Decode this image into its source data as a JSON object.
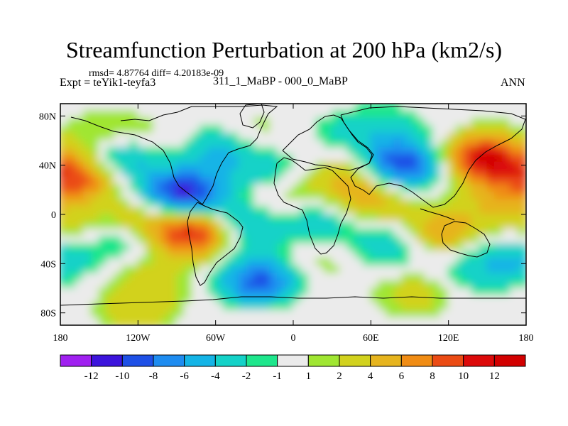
{
  "header": {
    "title": "Streamfunction Perturbation at 200 hPa (km2/s)",
    "stats": "rmsd= 4.87764 diff= 4.20183e-09",
    "experiment": "Expt = teYik1-teyfa3",
    "comparison": "311_1_MaBP - 000_0_MaBP",
    "season": "ANN"
  },
  "chart_data": {
    "type": "heatmap",
    "title": "Streamfunction Perturbation at 200 hPa (km2/s)",
    "xlabel": "",
    "ylabel": "",
    "x_range": [
      -180,
      180
    ],
    "y_range": [
      -90,
      90
    ],
    "x_ticks": [
      {
        "value": -180,
        "label": "180"
      },
      {
        "value": -120,
        "label": "120W"
      },
      {
        "value": -60,
        "label": "60W"
      },
      {
        "value": 0,
        "label": "0"
      },
      {
        "value": 60,
        "label": "60E"
      },
      {
        "value": 120,
        "label": "120E"
      },
      {
        "value": 180,
        "label": "180"
      }
    ],
    "y_ticks": [
      {
        "value": 80,
        "label": "80N"
      },
      {
        "value": 40,
        "label": "40N"
      },
      {
        "value": 0,
        "label": "0"
      },
      {
        "value": -40,
        "label": "40S"
      },
      {
        "value": -80,
        "label": "80S"
      }
    ],
    "colorbar": {
      "labels": [
        "-12",
        "-10",
        "-8",
        "-6",
        "-4",
        "-2",
        "-1",
        "1",
        "2",
        "4",
        "6",
        "8",
        "10",
        "12"
      ],
      "colors": [
        "#a020f0",
        "#3c14dc",
        "#1e50e6",
        "#1e8cf0",
        "#14b4e6",
        "#14d2c8",
        "#1ee68c",
        "#ebebeb",
        "#a0e632",
        "#d2d21e",
        "#e6b41e",
        "#f08c14",
        "#eb4b14",
        "#dc0a0a",
        "#d20000"
      ]
    },
    "anomalies": [
      {
        "lon": -165,
        "lat": 30,
        "value": 9
      },
      {
        "lon": -140,
        "lat": 65,
        "value": 3
      },
      {
        "lon": -165,
        "lat": -15,
        "value": 3
      },
      {
        "lon": -130,
        "lat": 45,
        "value": -6
      },
      {
        "lon": -135,
        "lat": -20,
        "value": -4
      },
      {
        "lon": -85,
        "lat": 15,
        "value": -12
      },
      {
        "lon": -60,
        "lat": 52,
        "value": -5
      },
      {
        "lon": -95,
        "lat": 55,
        "value": 2
      },
      {
        "lon": -30,
        "lat": 65,
        "value": 2
      },
      {
        "lon": -75,
        "lat": -15,
        "value": 12
      },
      {
        "lon": -115,
        "lat": -5,
        "value": 5
      },
      {
        "lon": -40,
        "lat": -10,
        "value": -6
      },
      {
        "lon": -25,
        "lat": -55,
        "value": -9
      },
      {
        "lon": -110,
        "lat": -55,
        "value": 3
      },
      {
        "lon": -20,
        "lat": 35,
        "value": -3
      },
      {
        "lon": -10,
        "lat": 10,
        "value": 3
      },
      {
        "lon": 40,
        "lat": 30,
        "value": 4
      },
      {
        "lon": 40,
        "lat": 65,
        "value": -2
      },
      {
        "lon": 85,
        "lat": 40,
        "value": -10
      },
      {
        "lon": 75,
        "lat": 70,
        "value": -2
      },
      {
        "lon": 60,
        "lat": 10,
        "value": 5
      },
      {
        "lon": 20,
        "lat": -5,
        "value": -4
      },
      {
        "lon": 20,
        "lat": -40,
        "value": 2
      },
      {
        "lon": 75,
        "lat": -25,
        "value": -4
      },
      {
        "lon": 115,
        "lat": -15,
        "value": 6
      },
      {
        "lon": 148,
        "lat": 45,
        "value": 12
      },
      {
        "lon": 160,
        "lat": 10,
        "value": 4
      },
      {
        "lon": 140,
        "lat": -45,
        "value": -3
      },
      {
        "lon": 95,
        "lat": -65,
        "value": 3
      },
      {
        "lon": 175,
        "lat": -35,
        "value": -4
      },
      {
        "lon": -10,
        "lat": -80,
        "value": 1
      },
      {
        "lon": -120,
        "lat": -80,
        "value": 3
      }
    ]
  }
}
